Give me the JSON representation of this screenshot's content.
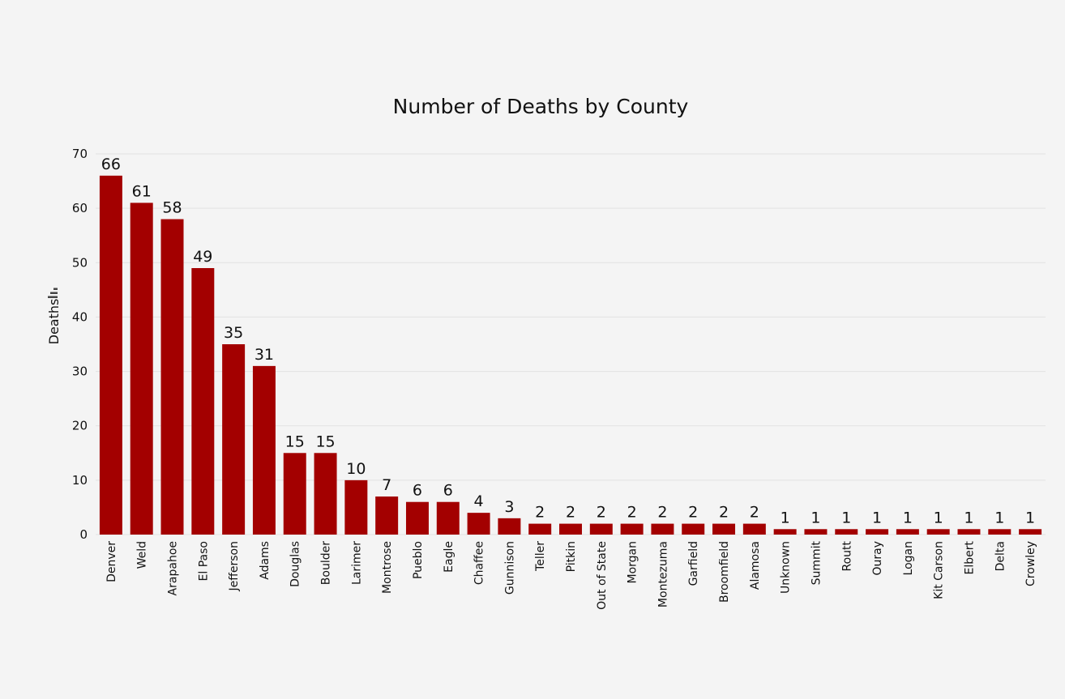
{
  "chart_data": {
    "type": "bar",
    "title": "Number of Deaths by County",
    "xlabel": "",
    "ylabel": "Deaths",
    "ylim": [
      0,
      70
    ],
    "yticks": [
      0,
      10,
      20,
      30,
      40,
      50,
      60,
      70
    ],
    "grid": true,
    "bar_color": "#a30000",
    "categories": [
      "Denver",
      "Weld",
      "Arapahoe",
      "El Paso",
      "Jefferson",
      "Adams",
      "Douglas",
      "Boulder",
      "Larimer",
      "Montrose",
      "Pueblo",
      "Eagle",
      "Chaffee",
      "Gunnison",
      "Teller",
      "Pitkin",
      "Out of State",
      "Morgan",
      "Montezuma",
      "Garfield",
      "Broomfield",
      "Alamosa",
      "Unknown",
      "Summit",
      "Routt",
      "Ouray",
      "Logan",
      "Kit Carson",
      "Elbert",
      "Delta",
      "Crowley"
    ],
    "values": [
      66,
      61,
      58,
      49,
      35,
      31,
      15,
      15,
      10,
      7,
      6,
      6,
      4,
      3,
      2,
      2,
      2,
      2,
      2,
      2,
      2,
      2,
      1,
      1,
      1,
      1,
      1,
      1,
      1,
      1,
      1
    ],
    "icons": {
      "sort_icon": "sort-icon"
    }
  }
}
